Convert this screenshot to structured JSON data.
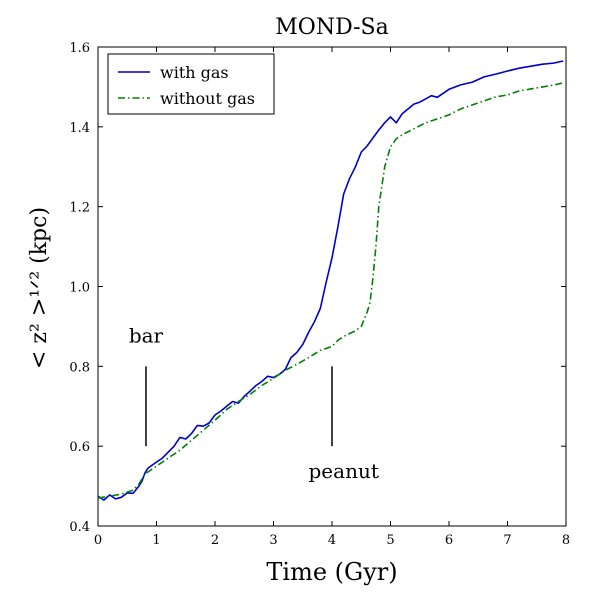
{
  "chart_data": {
    "type": "line",
    "title": "MOND-Sa",
    "xlabel": "Time (Gyr)",
    "ylabel": "< z² >¹ᐟ² (kpc)",
    "xlim": [
      0,
      8
    ],
    "ylim": [
      0.4,
      1.6
    ],
    "xticks": [
      0,
      1,
      2,
      3,
      4,
      5,
      6,
      7,
      8
    ],
    "yticks": [
      0.4,
      0.6,
      0.8,
      1.0,
      1.2,
      1.4,
      1.6
    ],
    "xtick_labels": [
      "0",
      "1",
      "2",
      "3",
      "4",
      "5",
      "6",
      "7",
      "8"
    ],
    "ytick_labels": [
      "0.4",
      "0.6",
      "0.8",
      "1.0",
      "1.2",
      "1.4",
      "1.6"
    ],
    "legend_position": "top-left",
    "series": [
      {
        "name": "with gas",
        "color": "#0000cc",
        "style": "solid",
        "x": [
          0.0,
          0.1,
          0.2,
          0.3,
          0.4,
          0.5,
          0.6,
          0.7,
          0.75,
          0.8,
          0.85,
          0.9,
          1.0,
          1.1,
          1.2,
          1.3,
          1.4,
          1.5,
          1.6,
          1.7,
          1.8,
          1.9,
          2.0,
          2.1,
          2.2,
          2.3,
          2.4,
          2.5,
          2.6,
          2.7,
          2.8,
          2.9,
          3.0,
          3.1,
          3.2,
          3.3,
          3.4,
          3.5,
          3.6,
          3.7,
          3.8,
          3.9,
          4.0,
          4.1,
          4.2,
          4.3,
          4.4,
          4.5,
          4.6,
          4.7,
          4.8,
          4.9,
          5.0,
          5.1,
          5.2,
          5.3,
          5.4,
          5.5,
          5.6,
          5.7,
          5.8,
          5.9,
          6.0,
          6.2,
          6.4,
          6.6,
          6.8,
          7.0,
          7.2,
          7.4,
          7.6,
          7.8,
          7.95
        ],
        "y": [
          0.475,
          0.465,
          0.478,
          0.468,
          0.472,
          0.483,
          0.482,
          0.5,
          0.512,
          0.532,
          0.544,
          0.55,
          0.56,
          0.57,
          0.585,
          0.6,
          0.622,
          0.618,
          0.632,
          0.652,
          0.65,
          0.658,
          0.678,
          0.688,
          0.7,
          0.712,
          0.708,
          0.725,
          0.738,
          0.752,
          0.762,
          0.775,
          0.772,
          0.78,
          0.792,
          0.822,
          0.835,
          0.855,
          0.885,
          0.912,
          0.945,
          1.01,
          1.072,
          1.148,
          1.232,
          1.27,
          1.3,
          1.337,
          1.352,
          1.372,
          1.392,
          1.41,
          1.425,
          1.41,
          1.433,
          1.445,
          1.457,
          1.462,
          1.47,
          1.478,
          1.474,
          1.484,
          1.494,
          1.505,
          1.512,
          1.525,
          1.532,
          1.54,
          1.547,
          1.552,
          1.557,
          1.56,
          1.565
        ]
      },
      {
        "name": "without gas",
        "color": "#008000",
        "style": "dashdot",
        "x": [
          0.0,
          0.2,
          0.4,
          0.6,
          0.7,
          0.8,
          0.9,
          1.0,
          1.2,
          1.4,
          1.6,
          1.8,
          2.0,
          2.2,
          2.4,
          2.6,
          2.8,
          3.0,
          3.2,
          3.4,
          3.6,
          3.8,
          4.0,
          4.1,
          4.2,
          4.3,
          4.4,
          4.5,
          4.6,
          4.65,
          4.7,
          4.75,
          4.8,
          4.9,
          5.0,
          5.1,
          5.2,
          5.4,
          5.6,
          5.8,
          6.0,
          6.2,
          6.4,
          6.6,
          6.8,
          7.0,
          7.2,
          7.4,
          7.6,
          7.8,
          7.95
        ],
        "y": [
          0.47,
          0.475,
          0.48,
          0.49,
          0.505,
          0.53,
          0.54,
          0.55,
          0.57,
          0.59,
          0.615,
          0.64,
          0.665,
          0.692,
          0.712,
          0.73,
          0.752,
          0.77,
          0.79,
          0.805,
          0.822,
          0.84,
          0.85,
          0.865,
          0.875,
          0.882,
          0.889,
          0.9,
          0.935,
          0.96,
          1.02,
          1.1,
          1.2,
          1.3,
          1.35,
          1.37,
          1.38,
          1.395,
          1.41,
          1.42,
          1.43,
          1.445,
          1.455,
          1.465,
          1.475,
          1.48,
          1.49,
          1.495,
          1.5,
          1.505,
          1.51
        ]
      }
    ],
    "annotations": [
      {
        "text": "bar",
        "line_x": 0.82,
        "line_y": [
          0.6,
          0.8
        ],
        "label_x": 0.82,
        "label_y": 0.86
      },
      {
        "text": "peanut",
        "line_x": 4.0,
        "line_y": [
          0.6,
          0.8
        ],
        "label_x": 4.2,
        "label_y": 0.52
      }
    ]
  }
}
